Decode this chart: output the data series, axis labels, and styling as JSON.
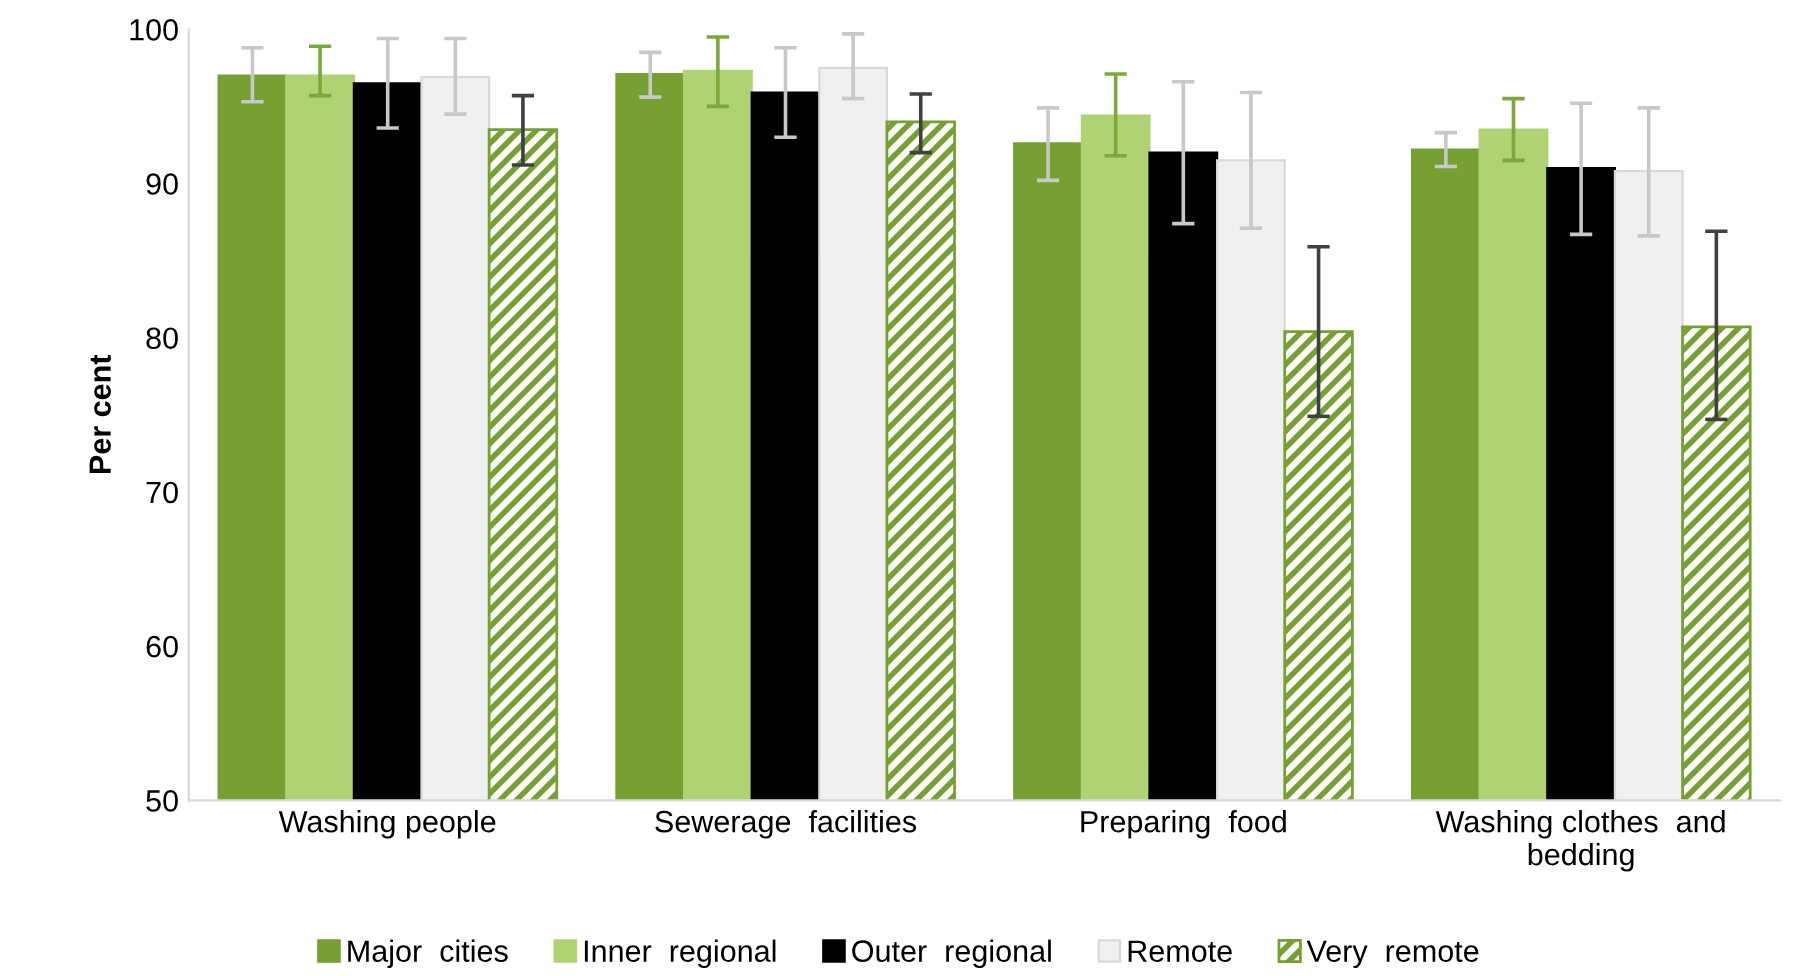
{
  "chart_data": {
    "type": "bar",
    "ylabel": "Per cent",
    "categories": [
      "Washing people",
      "Sewerage  facilities",
      "Preparing  food",
      "Washing clothes  and\nbedding"
    ],
    "series": [
      {
        "name": "Major  cities",
        "color": "#77a033",
        "values": [
          97.0,
          97.1,
          92.6,
          92.2
        ],
        "errors": [
          [
            95.3,
            98.8
          ],
          [
            95.6,
            98.5
          ],
          [
            90.2,
            94.9
          ],
          [
            91.1,
            93.3
          ]
        ]
      },
      {
        "name": "Inner  regional",
        "color": "#afd373",
        "values": [
          97.0,
          97.3,
          94.4,
          93.5
        ],
        "errors": [
          [
            95.7,
            98.9
          ],
          [
            95.0,
            99.5
          ],
          [
            91.8,
            97.1
          ],
          [
            91.5,
            95.5
          ]
        ]
      },
      {
        "name": "Outer  regional",
        "color": "#000000",
        "values": [
          96.5,
          95.9,
          92.0,
          91.0
        ],
        "errors": [
          [
            93.6,
            99.4
          ],
          [
            93.0,
            98.8
          ],
          [
            87.4,
            96.6
          ],
          [
            86.7,
            95.2
          ]
        ]
      },
      {
        "name": "Remote",
        "color": "#f0f0f0",
        "values": [
          96.9,
          97.5,
          91.5,
          90.8
        ],
        "errors": [
          [
            94.5,
            99.4
          ],
          [
            95.5,
            99.7
          ],
          [
            87.1,
            95.9
          ],
          [
            86.6,
            94.9
          ]
        ]
      },
      {
        "name": "Very  remote",
        "color": "#77a033",
        "values": [
          93.5,
          94.0,
          80.4,
          80.7
        ],
        "errors": [
          [
            91.2,
            95.7
          ],
          [
            92.0,
            95.8
          ],
          [
            74.9,
            85.9
          ],
          [
            74.7,
            86.9
          ]
        ]
      }
    ],
    "ylim": [
      50,
      100
    ],
    "yticks": [
      50,
      60,
      70,
      80,
      90,
      100
    ],
    "grid": false,
    "legend": "bottom"
  }
}
